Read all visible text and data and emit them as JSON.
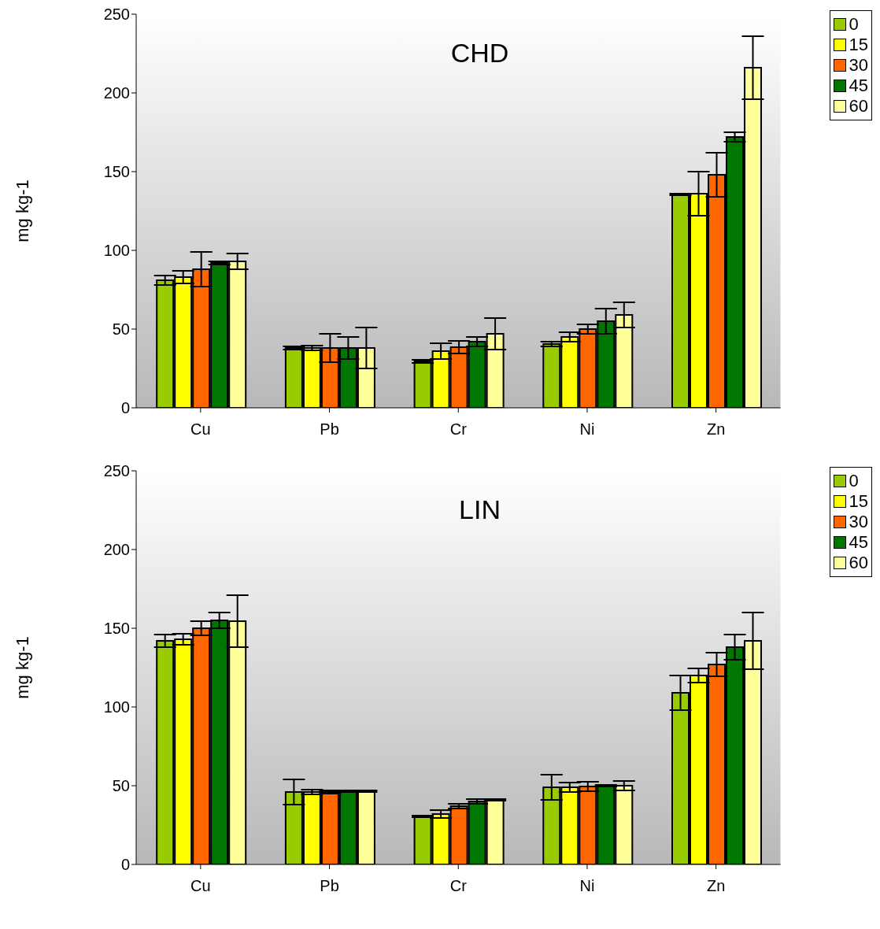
{
  "chart_data": [
    {
      "type": "bar",
      "title": "CHD",
      "ylabel": "mg kg-1",
      "categories": [
        "Cu",
        "Pb",
        "Cr",
        "Ni",
        "Zn"
      ],
      "ylim": [
        0,
        250
      ],
      "yticks": [
        0,
        50,
        100,
        150,
        200,
        250
      ],
      "grid": false,
      "legend": "top right",
      "series": [
        {
          "name": "0",
          "color": "#99cc00",
          "values": [
            81,
            38,
            29.5,
            40.5,
            135.5
          ],
          "errors": [
            3,
            1,
            1,
            1.5,
            0.5
          ]
        },
        {
          "name": "15",
          "color": "#ffff00",
          "values": [
            83,
            38,
            36,
            45,
            136
          ],
          "errors": [
            4,
            1.5,
            5,
            3,
            14
          ]
        },
        {
          "name": "30",
          "color": "#ff6600",
          "values": [
            88,
            38,
            38.5,
            50,
            148
          ],
          "errors": [
            11,
            9,
            4,
            3,
            14
          ]
        },
        {
          "name": "45",
          "color": "#007700",
          "values": [
            92,
            38,
            42,
            55,
            172
          ],
          "errors": [
            1,
            7,
            3,
            8,
            3
          ]
        },
        {
          "name": "60",
          "color": "#ffff99",
          "values": [
            93,
            38,
            47,
            59,
            216
          ],
          "errors": [
            5,
            13,
            10,
            8,
            20
          ]
        }
      ]
    },
    {
      "type": "bar",
      "title": "LIN",
      "ylabel": "mg kg-1",
      "categories": [
        "Cu",
        "Pb",
        "Cr",
        "Ni",
        "Zn"
      ],
      "ylim": [
        0,
        250
      ],
      "yticks": [
        0,
        50,
        100,
        150,
        200,
        250
      ],
      "grid": false,
      "legend": "top right",
      "series": [
        {
          "name": "0",
          "color": "#99cc00",
          "values": [
            142,
            46,
            30.5,
            49,
            109
          ],
          "errors": [
            4,
            8,
            0.5,
            8,
            11
          ]
        },
        {
          "name": "15",
          "color": "#ffff00",
          "values": [
            143,
            46,
            32,
            49,
            120
          ],
          "errors": [
            3.5,
            1.5,
            2.5,
            3,
            4.5
          ]
        },
        {
          "name": "30",
          "color": "#ff6600",
          "values": [
            150,
            46,
            37,
            49.5,
            127
          ],
          "errors": [
            4.5,
            1,
            1.5,
            3,
            7.5
          ]
        },
        {
          "name": "45",
          "color": "#007700",
          "values": [
            155,
            46.5,
            40,
            50,
            138
          ],
          "errors": [
            5,
            0.5,
            1.5,
            0.5,
            8
          ]
        },
        {
          "name": "60",
          "color": "#ffff99",
          "values": [
            154.5,
            46.5,
            41,
            50,
            142
          ],
          "errors": [
            16.5,
            0.5,
            0.5,
            3,
            18
          ]
        }
      ]
    }
  ]
}
